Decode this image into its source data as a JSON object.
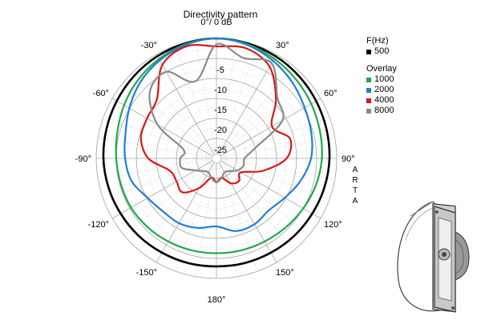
{
  "chart_data": {
    "type": "polar-line",
    "title": "Directivity pattern",
    "radial_unit": "dB",
    "radial_range": [
      -30,
      0
    ],
    "radial_ticks": [
      "0°/ 0 dB",
      "-5",
      "-10",
      "-15",
      "-20",
      "-25"
    ],
    "radial_tick_values": [
      0,
      -5,
      -10,
      -15,
      -20,
      -25
    ],
    "angle_labels": [
      {
        "angle": 0,
        "text": "0°/ 0 dB"
      },
      {
        "angle": 30,
        "text": "30°"
      },
      {
        "angle": 60,
        "text": "60°"
      },
      {
        "angle": 90,
        "text": "90°"
      },
      {
        "angle": 120,
        "text": "120°"
      },
      {
        "angle": 150,
        "text": "150°"
      },
      {
        "angle": 180,
        "text": "180°"
      },
      {
        "angle": -150,
        "text": "-150°"
      },
      {
        "angle": -120,
        "text": "-120°"
      },
      {
        "angle": -90,
        "text": "-90°"
      },
      {
        "angle": -60,
        "text": "-60°"
      },
      {
        "angle": -30,
        "text": "-30°"
      }
    ],
    "angles_deg": [
      0,
      15,
      30,
      45,
      60,
      75,
      90,
      105,
      120,
      135,
      150,
      165,
      180,
      195,
      210,
      225,
      240,
      255,
      270,
      285,
      300,
      315,
      330,
      345
    ],
    "legend_title": "F(Hz)",
    "overlay_label": "Overlay",
    "series": [
      {
        "name": "500",
        "color": "#000000",
        "values": [
          0,
          -0.2,
          -0.5,
          -0.9,
          -1.3,
          -1.6,
          -1.8,
          -2.1,
          -2.4,
          -2.6,
          -2.8,
          -2.9,
          -3.0,
          -2.9,
          -2.8,
          -2.6,
          -2.4,
          -2.1,
          -1.8,
          -1.6,
          -1.3,
          -0.9,
          -0.5,
          -0.2
        ]
      },
      {
        "name": "1000",
        "color": "#22a84a",
        "values": [
          0,
          -0.4,
          -1.2,
          -2.0,
          -2.7,
          -3.3,
          -3.7,
          -4.3,
          -5.0,
          -5.6,
          -6.0,
          -6.2,
          -6.3,
          -6.2,
          -6.0,
          -5.7,
          -5.4,
          -5.3,
          -5.0,
          -4.4,
          -3.4,
          -2.3,
          -1.3,
          -0.4
        ]
      },
      {
        "name": "2000",
        "color": "#1f7fd4",
        "values": [
          0,
          -0.6,
          -1.8,
          -3.2,
          -4.6,
          -5.5,
          -6.4,
          -8.3,
          -10.3,
          -11.6,
          -11.0,
          -11.2,
          -13.0,
          -12.0,
          -11.3,
          -11.2,
          -10.2,
          -8.1,
          -7.2,
          -6.5,
          -4.9,
          -3.1,
          -1.7,
          -0.6
        ]
      },
      {
        "name": "4000",
        "color": "#d81818",
        "values": [
          -2.0,
          -1.5,
          -3.5,
          -9.0,
          -14.0,
          -11.0,
          -12.5,
          -18.0,
          -23.0,
          -22.0,
          -22.8,
          -25.0,
          -24.0,
          -25.0,
          -21.5,
          -18.0,
          -18.5,
          -18.0,
          -13.0,
          -10.5,
          -10.0,
          -9.0,
          -3.0,
          -1.0
        ]
      },
      {
        "name": "8000",
        "color": "#8a8a8a",
        "values": [
          -1.5,
          -4.0,
          -2.5,
          -8.5,
          -11.0,
          -20.0,
          -23.0,
          -23.0,
          -24.0,
          -25.5,
          -26.0,
          -25.0,
          -24.0,
          -25.0,
          -26.0,
          -25.5,
          -24.0,
          -21.0,
          -21.0,
          -21.5,
          -13.0,
          -6.5,
          -5.0,
          -10.0
        ]
      }
    ]
  },
  "legend": {
    "title": "F(Hz)",
    "base": [
      {
        "label": "500",
        "color": "#000000"
      }
    ],
    "overlay_title": "Overlay",
    "overlay": [
      {
        "label": "1000",
        "color": "#22a84a"
      },
      {
        "label": "2000",
        "color": "#1f7fd4"
      },
      {
        "label": "4000",
        "color": "#d81818"
      },
      {
        "label": "8000",
        "color": "#8a8a8a"
      }
    ]
  },
  "watermark": {
    "letters": [
      "A",
      "R",
      "T",
      "A"
    ]
  },
  "speaker_image": {
    "icon": "waveguide-speaker-icon"
  }
}
